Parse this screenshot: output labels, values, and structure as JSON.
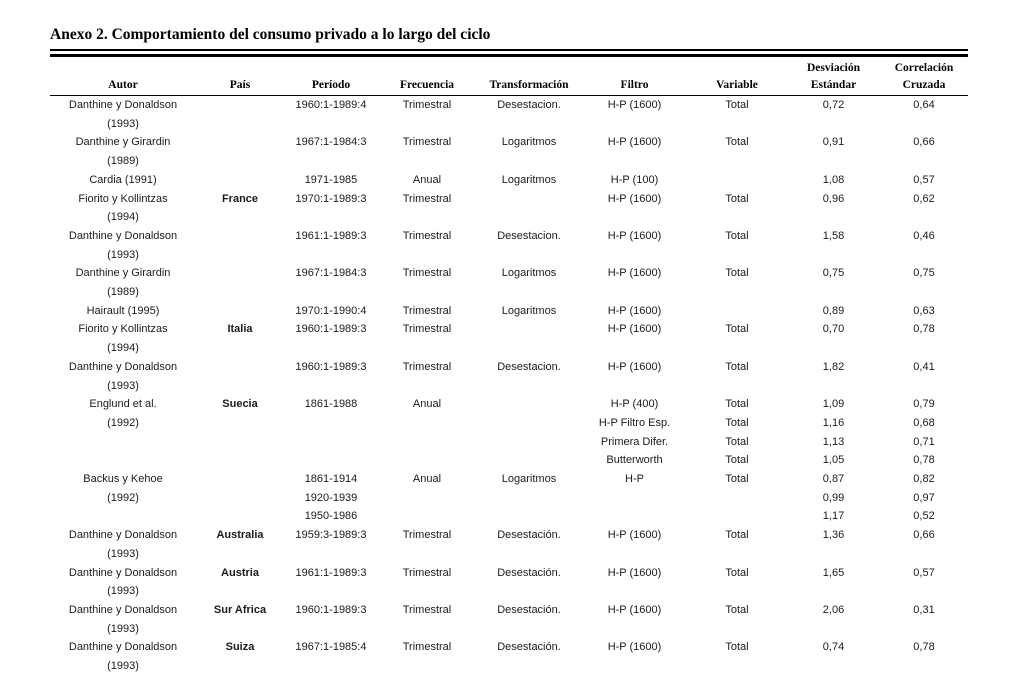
{
  "colors": {
    "ink": "#1b1b1b",
    "background": "#ffffff"
  },
  "page_title": "Anexo 2. Comportamiento del consumo privado a lo largo del ciclo",
  "table": {
    "column_keys": [
      "autor",
      "pais",
      "periodo",
      "frecuencia",
      "transformacion",
      "filtro",
      "variable",
      "desviacion-estandar",
      "correlacion-cruzada"
    ],
    "header_top": [
      "",
      "",
      "",
      "",
      "",
      "",
      "",
      "Desviación",
      "Correlación"
    ],
    "header_bottom": [
      "Autor",
      "País",
      "Período",
      "Frecuencia",
      "Transformación",
      "Filtro",
      "Variable",
      "Estándar",
      "Cruzada"
    ],
    "rows": [
      [
        "Danthine y Donaldson",
        "",
        "1960:1-1989:4",
        "Trimestral",
        "Desestacion.",
        "H-P (1600)",
        "Total",
        "0,72",
        "0,64"
      ],
      [
        "(1993)",
        "",
        "",
        "",
        "",
        "",
        "",
        "",
        ""
      ],
      [
        "Danthine y Girardin",
        "",
        "1967:1-1984:3",
        "Trimestral",
        "Logaritmos",
        "H-P (1600)",
        "Total",
        "0,91",
        "0,66"
      ],
      [
        "(1989)",
        "",
        "",
        "",
        "",
        "",
        "",
        "",
        ""
      ],
      [
        "Cardia (1991)",
        "",
        "1971-1985",
        "Anual",
        "Logaritmos",
        "H-P (100)",
        "",
        "1,08",
        "0,57"
      ],
      [
        "Fiorito y Kollintzas",
        "France",
        "1970:1-1989:3",
        "Trimestral",
        "",
        "H-P (1600)",
        "Total",
        "0,96",
        "0,62"
      ],
      [
        "(1994)",
        "",
        "",
        "",
        "",
        "",
        "",
        "",
        ""
      ],
      [
        "Danthine y Donaldson",
        "",
        "1961:1-1989:3",
        "Trimestral",
        "Desestacion.",
        "H-P (1600)",
        "Total",
        "1,58",
        "0,46"
      ],
      [
        "(1993)",
        "",
        "",
        "",
        "",
        "",
        "",
        "",
        ""
      ],
      [
        "Danthine y Girardin",
        "",
        "1967:1-1984:3",
        "Trimestral",
        "Logaritmos",
        "H-P (1600)",
        "Total",
        "0,75",
        "0,75"
      ],
      [
        "(1989)",
        "",
        "",
        "",
        "",
        "",
        "",
        "",
        ""
      ],
      [
        "Hairault (1995)",
        "",
        "1970:1-1990:4",
        "Trimestral",
        "Logaritmos",
        "H-P (1600)",
        "",
        "0,89",
        "0,63"
      ],
      [
        "Fiorito y Kollintzas",
        "Italia",
        "1960:1-1989:3",
        "Trimestral",
        "",
        "H-P (1600)",
        "Total",
        "0,70",
        "0,78"
      ],
      [
        "(1994)",
        "",
        "",
        "",
        "",
        "",
        "",
        "",
        ""
      ],
      [
        "Danthine y Donaldson",
        "",
        "1960:1-1989:3",
        "Trimestral",
        "Desestacion.",
        "H-P (1600)",
        "Total",
        "1,82",
        "0,41"
      ],
      [
        "(1993)",
        "",
        "",
        "",
        "",
        "",
        "",
        "",
        ""
      ],
      [
        "Englund et al.",
        "Suecia",
        "1861-1988",
        "Anual",
        "",
        "H-P (400)",
        "Total",
        "1,09",
        "0,79"
      ],
      [
        "(1992)",
        "",
        "",
        "",
        "",
        "H-P Filtro Esp.",
        "Total",
        "1,16",
        "0,68"
      ],
      [
        "",
        "",
        "",
        "",
        "",
        "Primera Difer.",
        "Total",
        "1,13",
        "0,71"
      ],
      [
        "",
        "",
        "",
        "",
        "",
        "Butterworth",
        "Total",
        "1,05",
        "0,78"
      ],
      [
        "Backus y Kehoe",
        "",
        "1861-1914",
        "Anual",
        "Logaritmos",
        "H-P",
        "Total",
        "0,87",
        "0,82"
      ],
      [
        "(1992)",
        "",
        "1920-1939",
        "",
        "",
        "",
        "",
        "0,99",
        "0,97"
      ],
      [
        "",
        "",
        "1950-1986",
        "",
        "",
        "",
        "",
        "1,17",
        "0,52"
      ],
      [
        "Danthine y Donaldson",
        "Australia",
        "1959:3-1989:3",
        "Trimestral",
        "Desestación.",
        "H-P (1600)",
        "Total",
        "1,36",
        "0,66"
      ],
      [
        "(1993)",
        "",
        "",
        "",
        "",
        "",
        "",
        "",
        ""
      ],
      [
        "Danthine y Donaldson",
        "Austria",
        "1961:1-1989:3",
        "Trimestral",
        "Desestación.",
        "H-P (1600)",
        "Total",
        "1,65",
        "0,57"
      ],
      [
        "(1993)",
        "",
        "",
        "",
        "",
        "",
        "",
        "",
        ""
      ],
      [
        "Danthine y Donaldson",
        "Sur Africa",
        "1960:1-1989:3",
        "Trimestral",
        "Desestación.",
        "H-P (1600)",
        "Total",
        "2,06",
        "0,31"
      ],
      [
        "(1993)",
        "",
        "",
        "",
        "",
        "",
        "",
        "",
        ""
      ],
      [
        "Danthine y Donaldson",
        "Suiza",
        "1967:1-1985:4",
        "Trimestral",
        "Desestación.",
        "H-P (1600)",
        "Total",
        "0,74",
        "0,78"
      ],
      [
        "(1993)",
        "",
        "",
        "",
        "",
        "",
        "",
        "",
        ""
      ]
    ]
  }
}
